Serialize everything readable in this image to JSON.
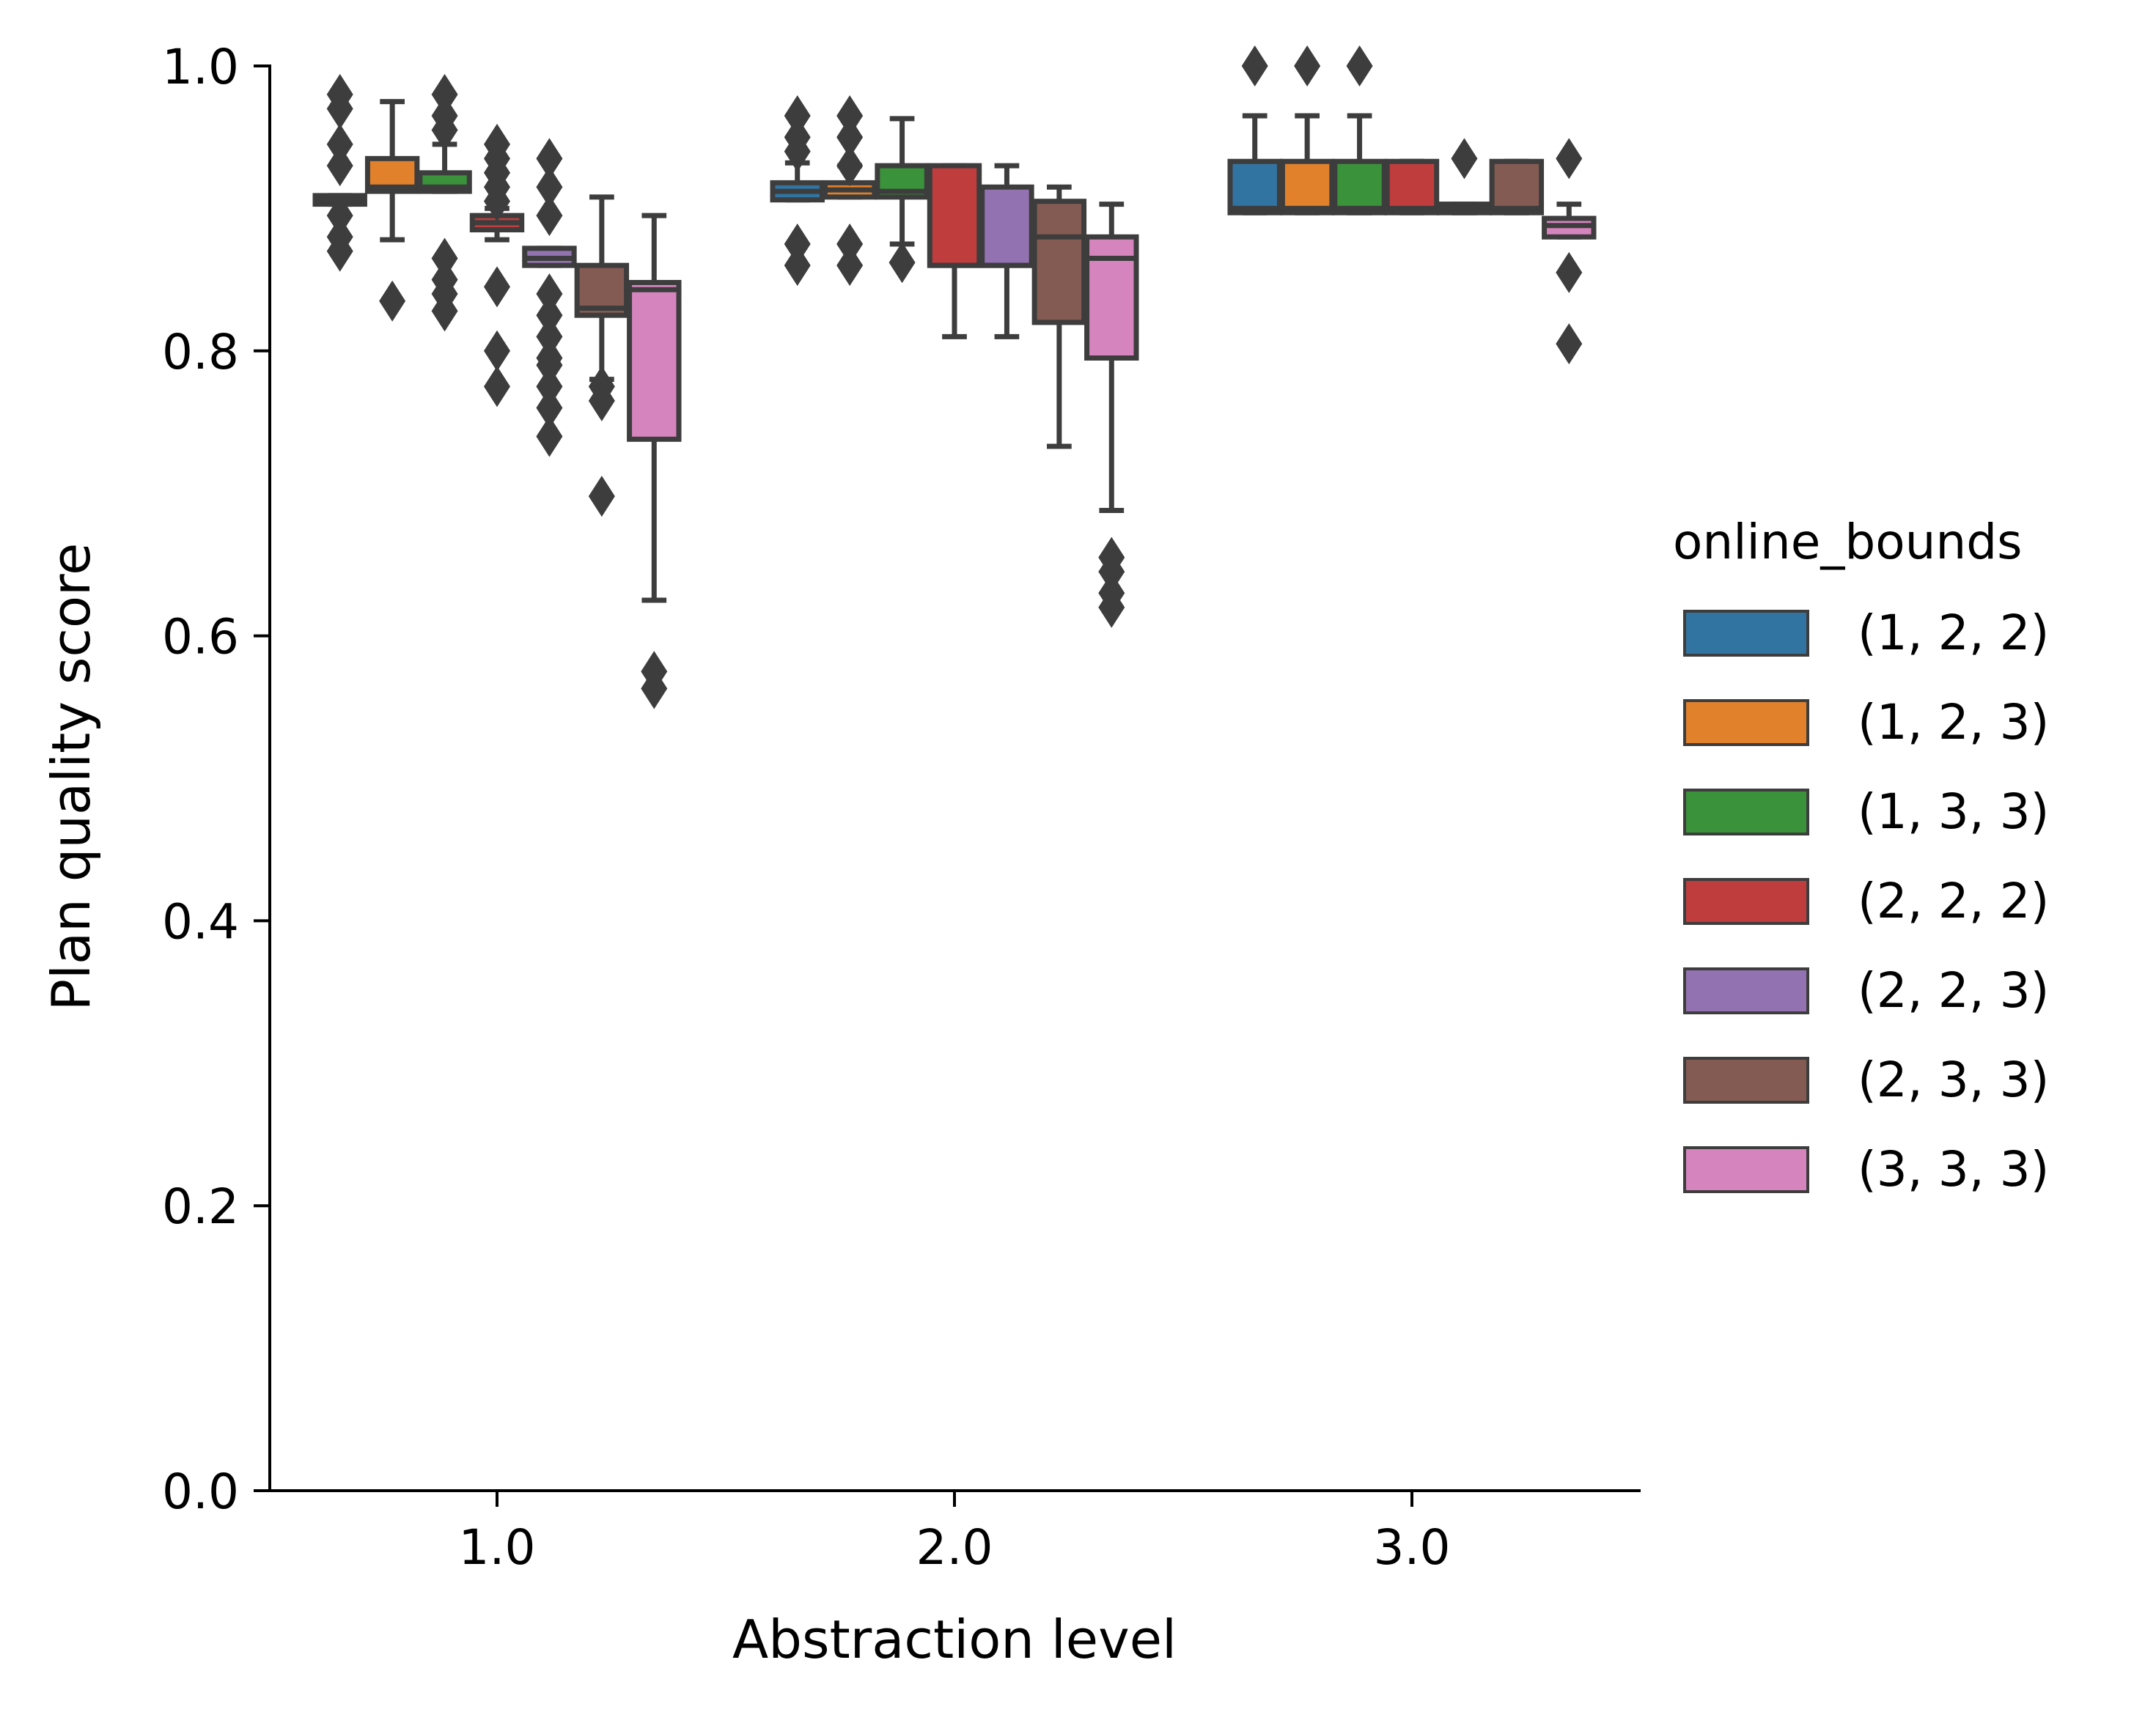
{
  "chart_data": {
    "type": "box",
    "xlabel": "Abstraction level",
    "ylabel": "Plan quality score",
    "categories": [
      "1.0",
      "2.0",
      "3.0"
    ],
    "ylim": [
      0.0,
      1.0
    ],
    "yticks": [
      "0.0",
      "0.2",
      "0.4",
      "0.6",
      "0.8",
      "1.0"
    ],
    "grid": false,
    "legend": {
      "title": "online_bounds",
      "placement": "right"
    },
    "series": [
      {
        "name": "(1, 2, 2)",
        "color": "#3274a1",
        "boxes": [
          {
            "q1": 0.903,
            "median": 0.906,
            "q3": 0.909,
            "whislo": 0.903,
            "whishi": 0.909,
            "fliers": [
              0.98,
              0.97,
              0.945,
              0.93,
              0.895,
              0.88,
              0.87
            ]
          },
          {
            "q1": 0.906,
            "median": 0.912,
            "q3": 0.918,
            "whislo": 0.906,
            "whishi": 0.932,
            "fliers": [
              0.965,
              0.95,
              0.94,
              0.875,
              0.86
            ]
          },
          {
            "q1": 0.897,
            "median": 0.9,
            "q3": 0.933,
            "whislo": 0.897,
            "whishi": 0.965,
            "fliers": [
              1.0
            ]
          }
        ]
      },
      {
        "name": "(1, 2, 3)",
        "color": "#e1812c",
        "boxes": [
          {
            "q1": 0.912,
            "median": 0.915,
            "q3": 0.935,
            "whislo": 0.878,
            "whishi": 0.975,
            "fliers": [
              0.835
            ]
          },
          {
            "q1": 0.908,
            "median": 0.913,
            "q3": 0.918,
            "whislo": 0.908,
            "whishi": 0.93,
            "fliers": [
              0.965,
              0.95,
              0.93,
              0.875,
              0.86
            ]
          },
          {
            "q1": 0.897,
            "median": 0.9,
            "q3": 0.933,
            "whislo": 0.897,
            "whishi": 0.965,
            "fliers": [
              1.0
            ]
          }
        ]
      },
      {
        "name": "(1, 3, 3)",
        "color": "#3a923a",
        "boxes": [
          {
            "q1": 0.912,
            "median": 0.915,
            "q3": 0.925,
            "whislo": 0.912,
            "whishi": 0.945,
            "fliers": [
              0.98,
              0.965,
              0.955,
              0.865,
              0.85,
              0.84,
              0.828
            ]
          },
          {
            "q1": 0.908,
            "median": 0.912,
            "q3": 0.93,
            "whislo": 0.875,
            "whishi": 0.963,
            "fliers": [
              0.862
            ]
          },
          {
            "q1": 0.897,
            "median": 0.9,
            "q3": 0.933,
            "whislo": 0.897,
            "whishi": 0.965,
            "fliers": [
              1.0
            ]
          }
        ]
      },
      {
        "name": "(2, 2, 2)",
        "color": "#c03d3e",
        "boxes": [
          {
            "q1": 0.885,
            "median": 0.89,
            "q3": 0.895,
            "whislo": 0.878,
            "whishi": 0.9,
            "fliers": [
              0.945,
              0.935,
              0.925,
              0.915,
              0.905,
              0.845,
              0.8,
              0.775
            ]
          },
          {
            "q1": 0.86,
            "median": 0.86,
            "q3": 0.93,
            "whislo": 0.81,
            "whishi": 0.93,
            "fliers": []
          },
          {
            "q1": 0.897,
            "median": 0.9,
            "q3": 0.933,
            "whislo": 0.897,
            "whishi": 0.933,
            "fliers": []
          }
        ]
      },
      {
        "name": "(2, 2, 3)",
        "color": "#9372b2",
        "boxes": [
          {
            "q1": 0.86,
            "median": 0.865,
            "q3": 0.872,
            "whislo": 0.86,
            "whishi": 0.872,
            "fliers": [
              0.935,
              0.915,
              0.895,
              0.84,
              0.825,
              0.81,
              0.795,
              0.79,
              0.775,
              0.76,
              0.74
            ]
          },
          {
            "q1": 0.86,
            "median": 0.86,
            "q3": 0.915,
            "whislo": 0.81,
            "whishi": 0.93,
            "fliers": []
          },
          {
            "q1": 0.897,
            "median": 0.9,
            "q3": 0.903,
            "whislo": 0.897,
            "whishi": 0.903,
            "fliers": [
              0.935
            ]
          }
        ]
      },
      {
        "name": "(2, 3, 3)",
        "color": "#845b53",
        "boxes": [
          {
            "q1": 0.825,
            "median": 0.83,
            "q3": 0.86,
            "whislo": 0.78,
            "whishi": 0.908,
            "fliers": [
              0.775,
              0.765,
              0.698
            ]
          },
          {
            "q1": 0.82,
            "median": 0.88,
            "q3": 0.905,
            "whislo": 0.733,
            "whishi": 0.915,
            "fliers": []
          },
          {
            "q1": 0.897,
            "median": 0.9,
            "q3": 0.933,
            "whislo": 0.897,
            "whishi": 0.933,
            "fliers": []
          }
        ]
      },
      {
        "name": "(3, 3, 3)",
        "color": "#d684bd",
        "boxes": [
          {
            "q1": 0.738,
            "median": 0.843,
            "q3": 0.848,
            "whislo": 0.625,
            "whishi": 0.895,
            "fliers": [
              0.575,
              0.563
            ]
          },
          {
            "q1": 0.795,
            "median": 0.865,
            "q3": 0.88,
            "whislo": 0.688,
            "whishi": 0.903,
            "fliers": [
              0.655,
              0.645,
              0.63,
              0.62
            ]
          },
          {
            "q1": 0.88,
            "median": 0.888,
            "q3": 0.893,
            "whislo": 0.88,
            "whishi": 0.903,
            "fliers": [
              0.935,
              0.855,
              0.805
            ]
          }
        ]
      }
    ]
  }
}
